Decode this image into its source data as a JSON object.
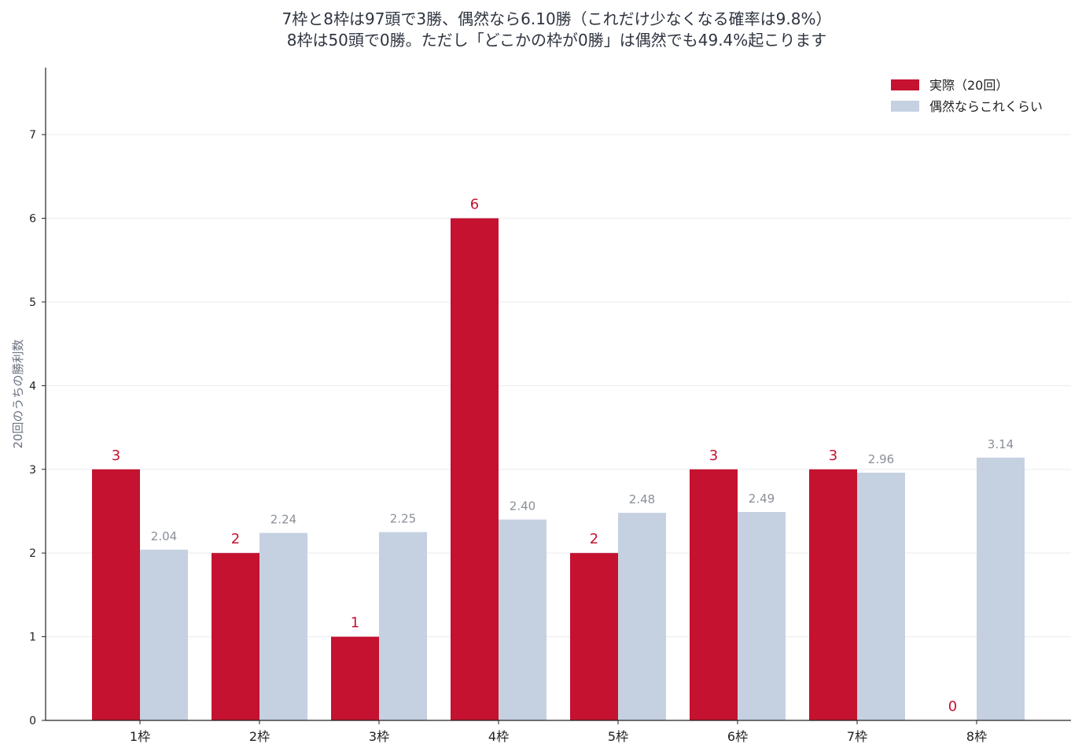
{
  "chart_data": {
    "type": "bar",
    "title": [
      "7枠と8枠は97頭で3勝、偶然なら6.10勝（これだけ少なくなる確率は9.8%）",
      "8枠は50頭で0勝。ただし「どこかの枠が0勝」は偶然でも49.4%起こります"
    ],
    "xlabel": "",
    "ylabel": "20回のうちの勝利数",
    "ylim": [
      0,
      7.8
    ],
    "yticks": [
      0,
      1,
      2,
      3,
      4,
      5,
      6,
      7
    ],
    "grid": "horizontal",
    "legend_position": "top-right",
    "categories": [
      "1枠",
      "2枠",
      "3枠",
      "4枠",
      "5枠",
      "6枠",
      "7枠",
      "8枠"
    ],
    "series": [
      {
        "name": "実際（20回）",
        "color": "#c41230",
        "values": [
          3,
          2,
          1,
          6,
          2,
          3,
          3,
          0
        ],
        "labels": [
          "3",
          "2",
          "1",
          "6",
          "2",
          "3",
          "3",
          "0"
        ]
      },
      {
        "name": "偶然ならこれくらい",
        "color": "#c5d1e1",
        "values": [
          2.04,
          2.24,
          2.25,
          2.4,
          2.48,
          2.49,
          2.96,
          3.14
        ],
        "labels": [
          "2.04",
          "2.24",
          "2.25",
          "2.40",
          "2.48",
          "2.49",
          "2.96",
          "3.14"
        ]
      }
    ]
  }
}
